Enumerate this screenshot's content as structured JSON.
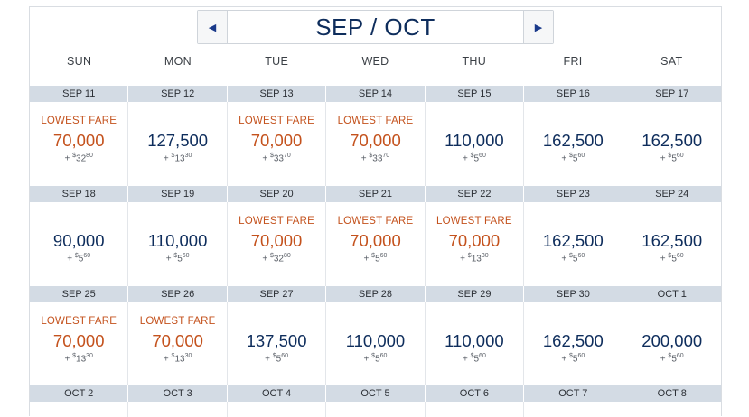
{
  "header": {
    "title": "SEP / OCT",
    "prev_icon": "triangle-left",
    "next_icon": "triangle-right"
  },
  "days": [
    "SUN",
    "MON",
    "TUE",
    "WED",
    "THU",
    "FRI",
    "SAT"
  ],
  "lowest_label": "LOWEST FARE",
  "colors": {
    "lowest": "#c4521d",
    "normal": "#0e2d5c",
    "date_bar": "#d3dbe4"
  },
  "weeks": [
    {
      "dates": [
        "SEP 11",
        "SEP 12",
        "SEP 13",
        "SEP 14",
        "SEP 15",
        "SEP 16",
        "SEP 17"
      ],
      "fares": [
        {
          "miles": "70,000",
          "tax_main": "$",
          "tax_sup": "32.80",
          "lowest": true
        },
        {
          "miles": "127,500",
          "tax_main": "$",
          "tax_sup": "13.30",
          "lowest": false
        },
        {
          "miles": "70,000",
          "tax_main": "$",
          "tax_sup": "33.70",
          "lowest": true
        },
        {
          "miles": "70,000",
          "tax_main": "$",
          "tax_sup": "33.70",
          "lowest": true
        },
        {
          "miles": "110,000",
          "tax_main": "$",
          "tax_sup": "5.60",
          "lowest": false
        },
        {
          "miles": "162,500",
          "tax_main": "$",
          "tax_sup": "5.60",
          "lowest": false
        },
        {
          "miles": "162,500",
          "tax_main": "$",
          "tax_sup": "5.60",
          "lowest": false
        }
      ]
    },
    {
      "dates": [
        "SEP 18",
        "SEP 19",
        "SEP 20",
        "SEP 21",
        "SEP 22",
        "SEP 23",
        "SEP 24"
      ],
      "fares": [
        {
          "miles": "90,000",
          "tax_main": "$",
          "tax_sup": "5.60",
          "lowest": false
        },
        {
          "miles": "110,000",
          "tax_main": "$",
          "tax_sup": "5.60",
          "lowest": false
        },
        {
          "miles": "70,000",
          "tax_main": "$",
          "tax_sup": "32.80",
          "lowest": true
        },
        {
          "miles": "70,000",
          "tax_main": "$",
          "tax_sup": "5.60",
          "lowest": true
        },
        {
          "miles": "70,000",
          "tax_main": "$",
          "tax_sup": "13.30",
          "lowest": true
        },
        {
          "miles": "162,500",
          "tax_main": "$",
          "tax_sup": "5.60",
          "lowest": false
        },
        {
          "miles": "162,500",
          "tax_main": "$",
          "tax_sup": "5.60",
          "lowest": false
        }
      ]
    },
    {
      "dates": [
        "SEP 25",
        "SEP 26",
        "SEP 27",
        "SEP 28",
        "SEP 29",
        "SEP 30",
        "OCT 1"
      ],
      "fares": [
        {
          "miles": "70,000",
          "tax_main": "$",
          "tax_sup": "13.30",
          "lowest": true
        },
        {
          "miles": "70,000",
          "tax_main": "$",
          "tax_sup": "13.30",
          "lowest": true
        },
        {
          "miles": "137,500",
          "tax_main": "$",
          "tax_sup": "5.60",
          "lowest": false
        },
        {
          "miles": "110,000",
          "tax_main": "$",
          "tax_sup": "5.60",
          "lowest": false
        },
        {
          "miles": "110,000",
          "tax_main": "$",
          "tax_sup": "5.60",
          "lowest": false
        },
        {
          "miles": "162,500",
          "tax_main": "$",
          "tax_sup": "5.60",
          "lowest": false
        },
        {
          "miles": "200,000",
          "tax_main": "$",
          "tax_sup": "5.60",
          "lowest": false
        }
      ]
    }
  ],
  "last_dates": [
    "OCT 2",
    "OCT 3",
    "OCT 4",
    "OCT 5",
    "OCT 6",
    "OCT 7",
    "OCT 8"
  ]
}
